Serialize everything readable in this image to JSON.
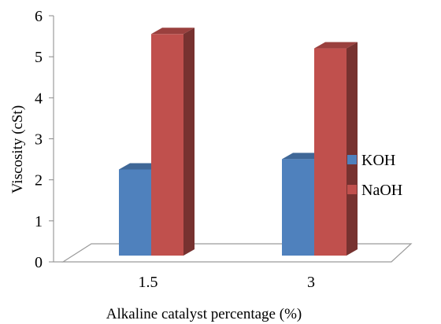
{
  "chart_data": {
    "type": "bar",
    "style": "3d-clustered-column",
    "title": "",
    "xlabel": "Alkaline catalyst percentage (%)",
    "ylabel": "Viscosity (cSt)",
    "categories": [
      "1.5",
      "3"
    ],
    "ylim": [
      0,
      6
    ],
    "yticks": [
      "0",
      "1",
      "2",
      "3",
      "4",
      "5",
      "6"
    ],
    "grid": false,
    "legend_position": "right",
    "series": [
      {
        "name": "KOH",
        "color": "#4f81bd",
        "values": [
          2.1,
          2.35
        ]
      },
      {
        "name": "NaOH",
        "color": "#c0504d",
        "values": [
          5.4,
          5.05
        ]
      }
    ]
  }
}
